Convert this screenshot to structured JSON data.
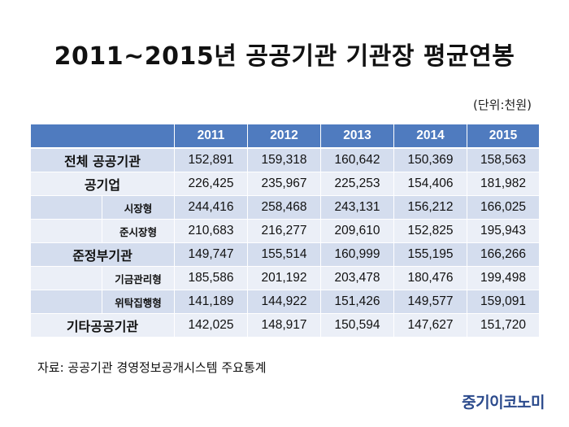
{
  "title": "2011~2015년 공공기관 기관장 평균연봉",
  "unit_note": "(단위:천원)",
  "table": {
    "years": [
      "2011",
      "2012",
      "2013",
      "2014",
      "2015"
    ],
    "rows": [
      {
        "label": "전체 공공기관",
        "level": "main",
        "values": [
          "152,891",
          "159,318",
          "160,642",
          "150,369",
          "158,563"
        ]
      },
      {
        "label": "공기업",
        "level": "main",
        "values": [
          "226,425",
          "235,967",
          "225,253",
          "154,406",
          "181,982"
        ]
      },
      {
        "label": "시장형",
        "level": "sub",
        "values": [
          "244,416",
          "258,468",
          "243,131",
          "156,212",
          "166,025"
        ]
      },
      {
        "label": "준시장형",
        "level": "sub",
        "values": [
          "210,683",
          "216,277",
          "209,610",
          "152,825",
          "195,943"
        ]
      },
      {
        "label": "준정부기관",
        "level": "main",
        "values": [
          "149,747",
          "155,514",
          "160,999",
          "155,195",
          "166,266"
        ]
      },
      {
        "label": "기금관리형",
        "level": "sub",
        "values": [
          "185,586",
          "201,192",
          "203,478",
          "180,476",
          "199,498"
        ]
      },
      {
        "label": "위탁집행형",
        "level": "sub",
        "values": [
          "141,189",
          "144,922",
          "151,426",
          "149,577",
          "159,091"
        ]
      },
      {
        "label": "기타공공기관",
        "level": "main",
        "values": [
          "142,025",
          "148,917",
          "150,594",
          "147,627",
          "151,720"
        ]
      }
    ]
  },
  "source": "자료: 공공기관 경영정보공개시스템 주요통계",
  "logo_text": "중기이코노미",
  "colors": {
    "header": "#4f7bbf",
    "row_dark": "#d4ddee",
    "row_light": "#ebeff7",
    "logo": "#2b4a8c"
  }
}
